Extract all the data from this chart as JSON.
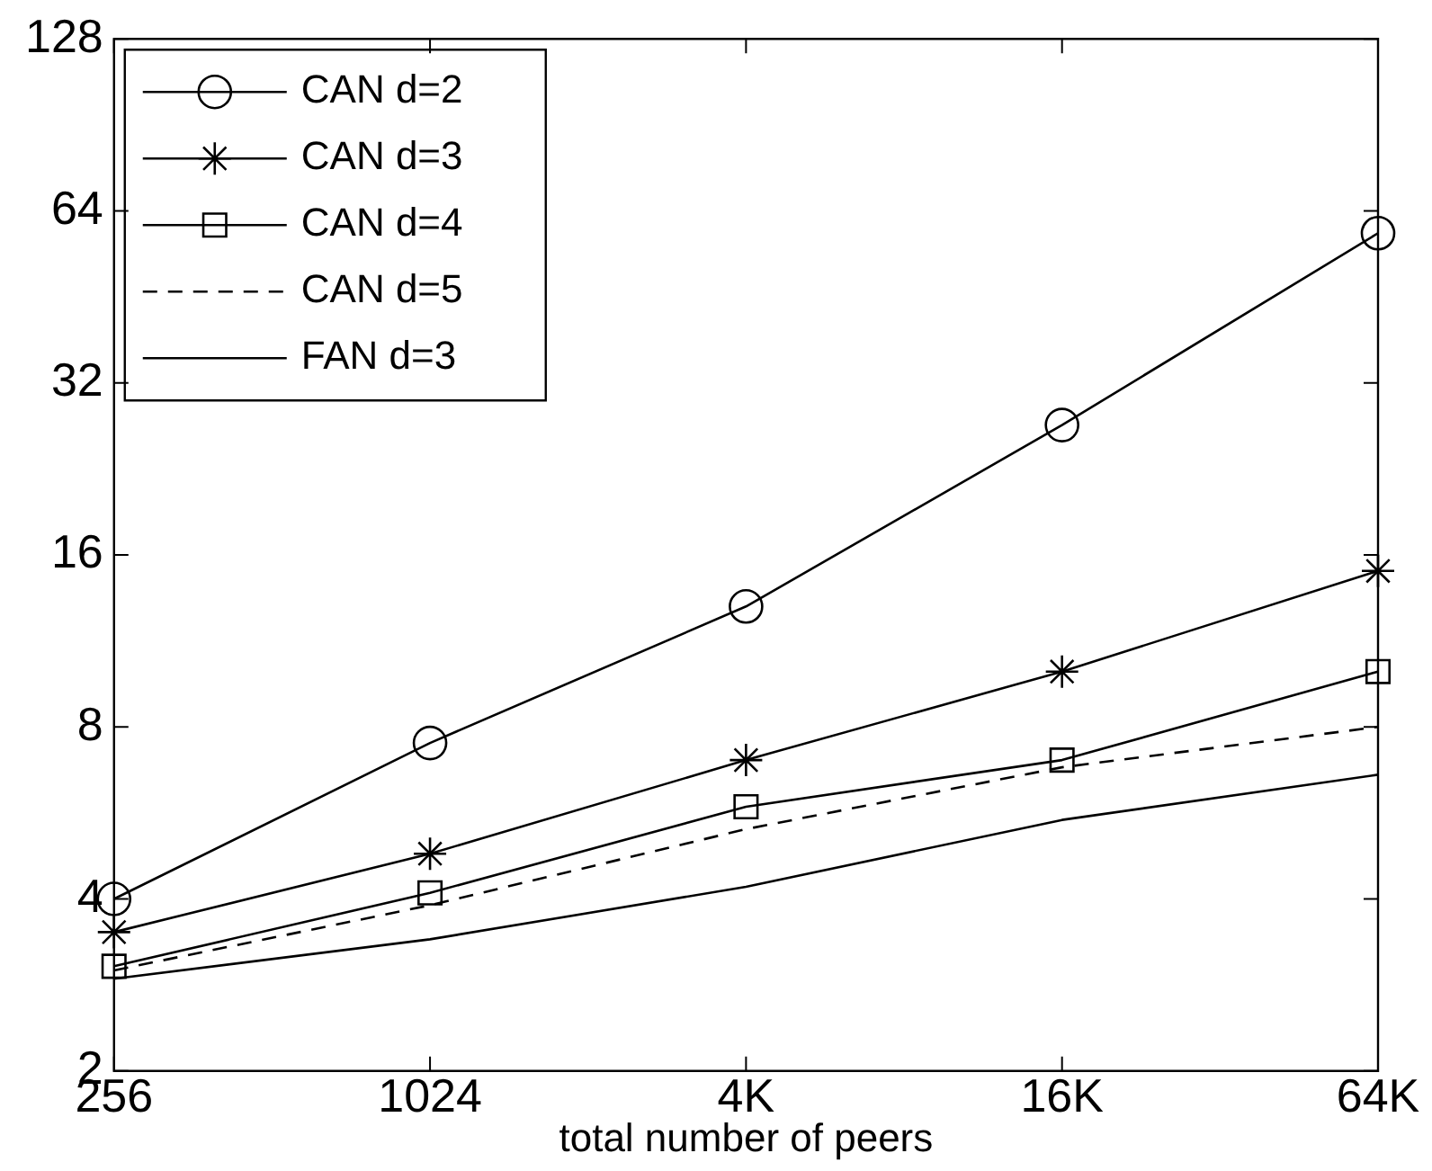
{
  "chart_data": {
    "type": "line",
    "xlabel": "total number of peers",
    "categories": [
      "256",
      "1024",
      "4K",
      "16K",
      "64K"
    ],
    "log": "y",
    "ylim": [
      2,
      128
    ],
    "yticks": [
      2,
      4,
      8,
      16,
      32,
      64,
      128
    ],
    "grid": false,
    "legend": "top left",
    "series": [
      {
        "name": "CAN d=2",
        "color": "#000000",
        "marker": "circle",
        "line_style": "solid",
        "values": [
          4,
          7.5,
          13,
          27,
          58.5
        ]
      },
      {
        "name": "CAN d=3",
        "color": "#000000",
        "marker": "cross",
        "line_style": "solid",
        "values": [
          3.5,
          4.8,
          7,
          10,
          15
        ]
      },
      {
        "name": "CAN d=4",
        "color": "#000000",
        "marker": "square",
        "line_style": "solid",
        "values": [
          3.05,
          4.1,
          5.8,
          7,
          10
        ]
      },
      {
        "name": "CAN d=5",
        "color": "#000000",
        "marker": "none",
        "line_style": "dashed",
        "values": [
          3,
          3.9,
          5.3,
          6.8,
          8
        ]
      },
      {
        "name": "FAN d=3",
        "color": "#000000",
        "marker": "none",
        "line_style": "solid",
        "values": [
          2.9,
          3.4,
          4.2,
          5.5,
          6.6
        ]
      }
    ]
  }
}
